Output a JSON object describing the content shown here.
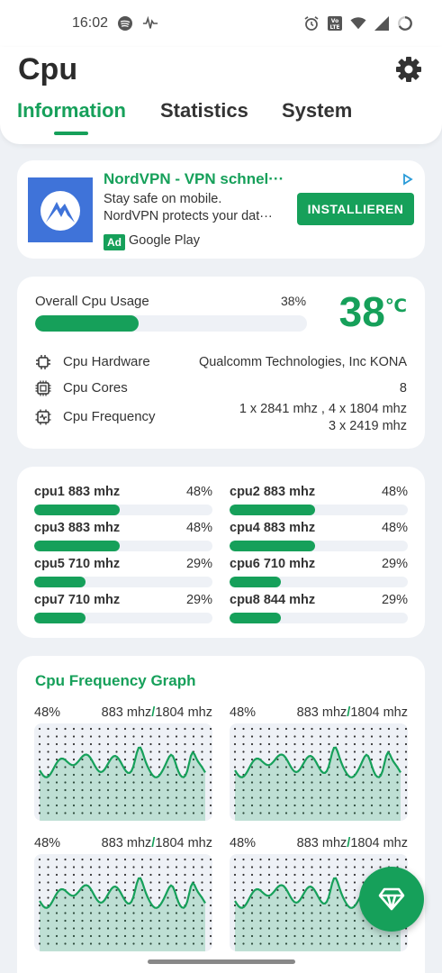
{
  "status_bar": {
    "time": "16:02",
    "icons": [
      "spotify-icon",
      "activity-icon",
      "alarm-icon",
      "volte-icon",
      "wifi-icon",
      "signal-icon",
      "battery-icon"
    ],
    "volte_label": "Vo LTE"
  },
  "header": {
    "title": "Cpu",
    "tabs": [
      {
        "label": "Information",
        "active": true
      },
      {
        "label": "Statistics",
        "active": false
      },
      {
        "label": "System",
        "active": false
      }
    ]
  },
  "ad": {
    "title": "NordVPN - VPN schnel···",
    "desc1": "Stay safe on mobile.",
    "desc2": "NordVPN protects your dat···",
    "badge": "Ad",
    "store": "Google Play",
    "button": "INSTALLIEREN"
  },
  "overview": {
    "usage_label": "Overall Cpu Usage",
    "usage_pct": "38%",
    "usage_value": 38,
    "temperature": "38",
    "temperature_unit": "℃",
    "rows": [
      {
        "icon": "chip-icon",
        "label": "Cpu Hardware",
        "value": "Qualcomm Technologies, Inc KONA"
      },
      {
        "icon": "cores-icon",
        "label": "Cpu Cores",
        "value": "8"
      },
      {
        "icon": "frequency-icon",
        "label": "Cpu Frequency",
        "value_line1": "1 x 2841 mhz , 4 x 1804 mhz",
        "value_line2": "3 x 2419 mhz"
      }
    ]
  },
  "cores": [
    {
      "name": "cpu1  883 mhz",
      "pct": "48%",
      "value": 48
    },
    {
      "name": "cpu2  883 mhz",
      "pct": "48%",
      "value": 48
    },
    {
      "name": "cpu3  883 mhz",
      "pct": "48%",
      "value": 48
    },
    {
      "name": "cpu4  883 mhz",
      "pct": "48%",
      "value": 48
    },
    {
      "name": "cpu5  710 mhz",
      "pct": "29%",
      "value": 29
    },
    {
      "name": "cpu6  710 mhz",
      "pct": "29%",
      "value": 29
    },
    {
      "name": "cpu7  710 mhz",
      "pct": "29%",
      "value": 29
    },
    {
      "name": "cpu8  844 mhz",
      "pct": "29%",
      "value": 29
    }
  ],
  "graph": {
    "title": "Cpu Frequency Graph",
    "cells": [
      {
        "pct": "48%",
        "current": "883 mhz",
        "max": "1804 mhz"
      },
      {
        "pct": "48%",
        "current": "883 mhz",
        "max": "1804 mhz"
      },
      {
        "pct": "48%",
        "current": "883 mhz",
        "max": "1804 mhz"
      },
      {
        "pct": "48%",
        "current": "883 mhz",
        "max": "1804 mhz"
      }
    ],
    "separator": "/"
  },
  "fab": {
    "icon": "diamond-icon"
  },
  "colors": {
    "accent": "#16a05a",
    "background": "#eef1f5",
    "track": "#eef1f6"
  }
}
